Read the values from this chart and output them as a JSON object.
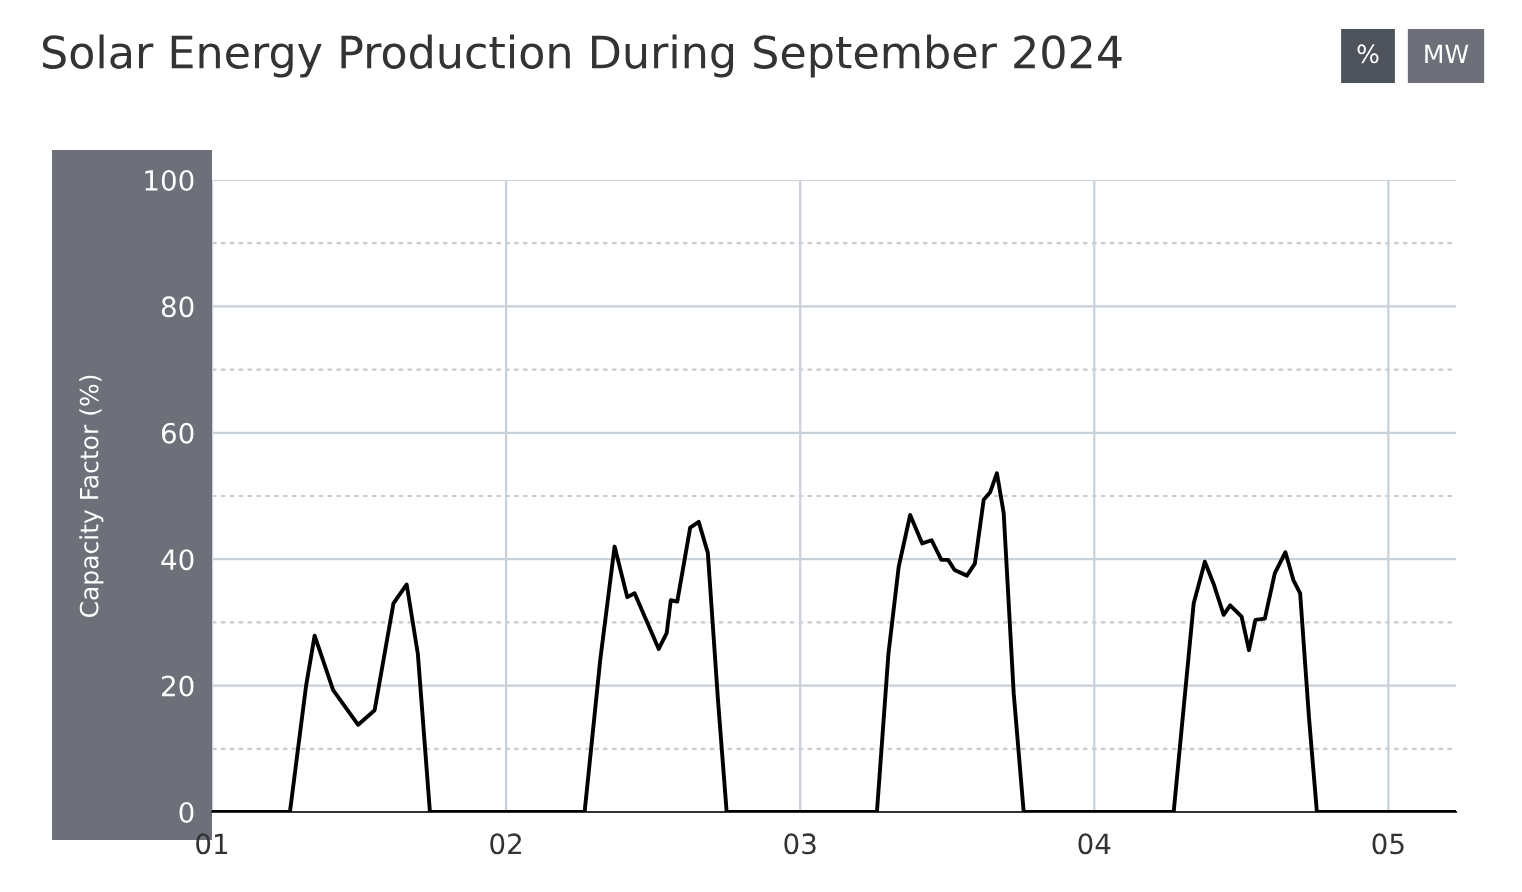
{
  "chart_data": {
    "type": "line",
    "title": "Solar Energy Production During September 2024",
    "ylabel": "Capacity Factor (%)",
    "annotations": [
      "%",
      "MW"
    ],
    "series": [
      {
        "color": "#000000",
        "x": [
          1.0,
          1.265,
          1.32,
          1.349,
          1.412,
          1.497,
          1.553,
          1.617,
          1.662,
          1.7,
          1.741,
          2.267,
          2.32,
          2.369,
          2.412,
          2.437,
          2.519,
          2.546,
          2.56,
          2.582,
          2.626,
          2.655,
          2.686,
          2.72,
          2.75,
          3.261,
          3.3,
          3.335,
          3.374,
          3.415,
          3.447,
          3.48,
          3.503,
          3.525,
          3.567,
          3.594,
          3.624,
          3.646,
          3.669,
          3.692,
          3.726,
          3.76,
          4.27,
          4.338,
          4.376,
          4.405,
          4.44,
          4.462,
          4.501,
          4.526,
          4.548,
          4.58,
          4.614,
          4.65,
          4.677,
          4.7,
          4.73,
          4.757,
          5.23
        ],
        "values": [
          0,
          0,
          20,
          27.9,
          19.3,
          13.8,
          16.1,
          33,
          36,
          25,
          0,
          0,
          24,
          42,
          34,
          34.6,
          25.8,
          28.3,
          33.5,
          33.3,
          45,
          45.9,
          41,
          18,
          0,
          0,
          25,
          38.8,
          47,
          42.5,
          43,
          39.9,
          39.9,
          38.3,
          37.4,
          39.3,
          49.4,
          50.6,
          53.6,
          47.3,
          18.8,
          0,
          0,
          33,
          39.6,
          36.2,
          31.2,
          32.7,
          30.9,
          25.6,
          30.4,
          30.6,
          37.8,
          41.1,
          36.7,
          34.6,
          15,
          0,
          0
        ]
      }
    ],
    "xlim": [
      1,
      5.23
    ],
    "xticks": [
      {
        "value": 1,
        "label": "01"
      },
      {
        "value": 2,
        "label": "02"
      },
      {
        "value": 3,
        "label": "03"
      },
      {
        "value": 4,
        "label": "04"
      },
      {
        "value": 5,
        "label": "05"
      }
    ],
    "ylim": [
      0,
      100
    ],
    "yticks": [
      0,
      {
        "value": 10,
        "label": null
      },
      20,
      {
        "value": 30,
        "label": null
      },
      40,
      {
        "value": 50,
        "label": null
      },
      60,
      {
        "value": 70,
        "label": null
      },
      80,
      {
        "value": 90,
        "label": null
      },
      100
    ],
    "grid": true,
    "line_style": "solid",
    "marker": "none",
    "legend": false
  }
}
